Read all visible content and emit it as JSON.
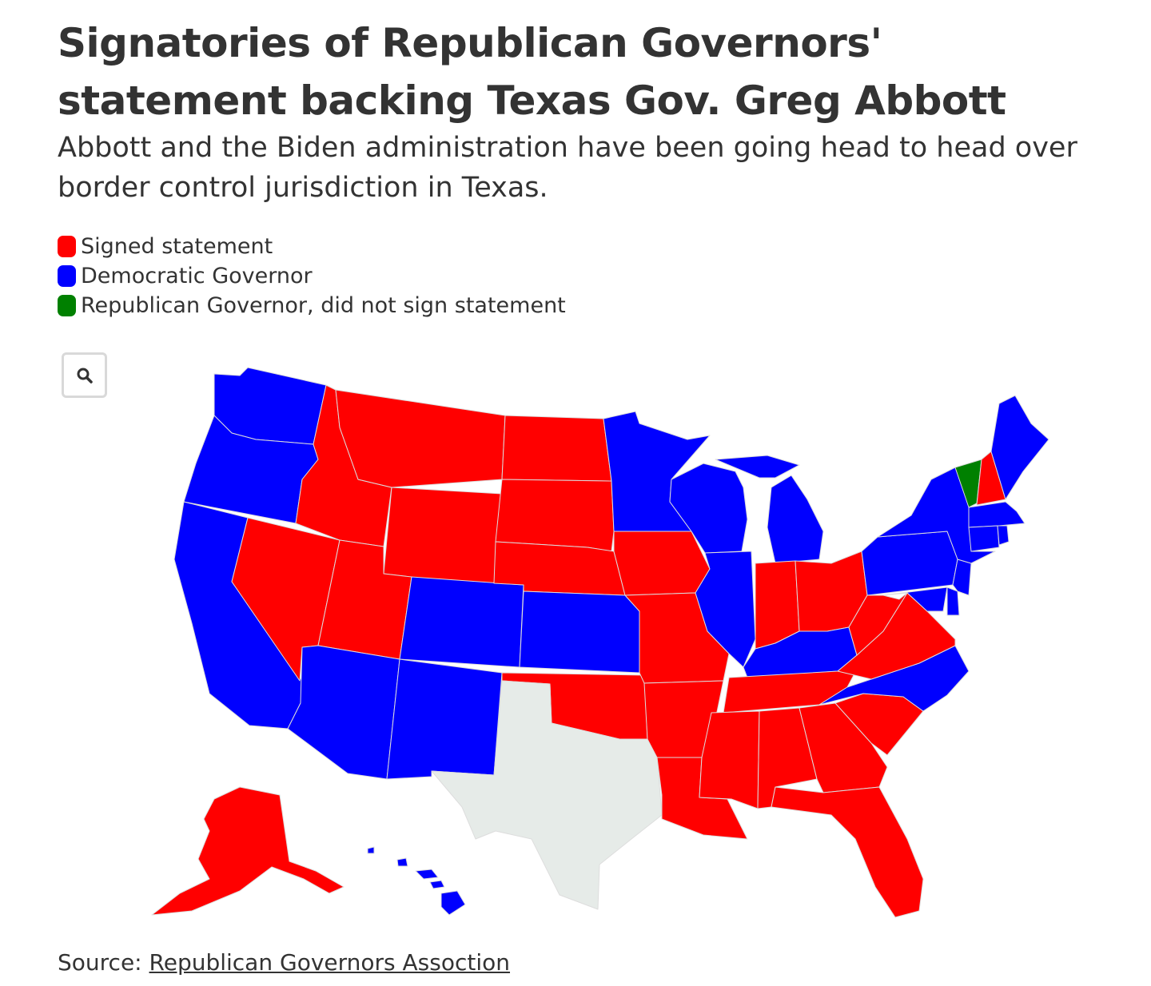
{
  "title": "Signatories of Republican Governors' statement backing Texas Gov. Greg Abbott",
  "subtitle": "Abbott and the Biden administration have been going head to head over border control jurisdiction in Texas.",
  "legend": [
    {
      "label": "Signed statement",
      "color": "#ff0000"
    },
    {
      "label": "Democratic Governor",
      "color": "#0000ff"
    },
    {
      "label": "Republican Governor, did not sign statement",
      "color": "#008000"
    }
  ],
  "colors": {
    "signed": "#ff0000",
    "democratic": "#0000ff",
    "republican_not_signed": "#008000",
    "no_data": "#e6ebe8"
  },
  "zoom_button": {
    "icon": "search-icon"
  },
  "map_data": {
    "type": "choropleth",
    "region": "United States",
    "states": {
      "signed": [
        "Alaska",
        "Idaho",
        "Montana",
        "North Dakota",
        "South Dakota",
        "Wyoming",
        "Nebraska",
        "Utah",
        "Nevada",
        "Iowa",
        "Missouri",
        "Oklahoma",
        "Arkansas",
        "Louisiana",
        "Mississippi",
        "Alabama",
        "Georgia",
        "South Carolina",
        "Florida",
        "Tennessee",
        "Indiana",
        "Ohio",
        "West Virginia",
        "Virginia",
        "New Hampshire"
      ],
      "democratic": [
        "Washington",
        "Oregon",
        "California",
        "Arizona",
        "New Mexico",
        "Colorado",
        "Kansas",
        "Minnesota",
        "Wisconsin",
        "Michigan",
        "Illinois",
        "Kentucky",
        "North Carolina",
        "Pennsylvania",
        "New York",
        "New Jersey",
        "Delaware",
        "Maryland",
        "Connecticut",
        "Rhode Island",
        "Massachusetts",
        "Maine",
        "Hawaii"
      ],
      "republican_not_signed": [
        "Vermont"
      ],
      "no_data": [
        "Texas"
      ]
    }
  },
  "source": {
    "prefix": "Source: ",
    "link_text": "Republican Governors Assoction"
  }
}
